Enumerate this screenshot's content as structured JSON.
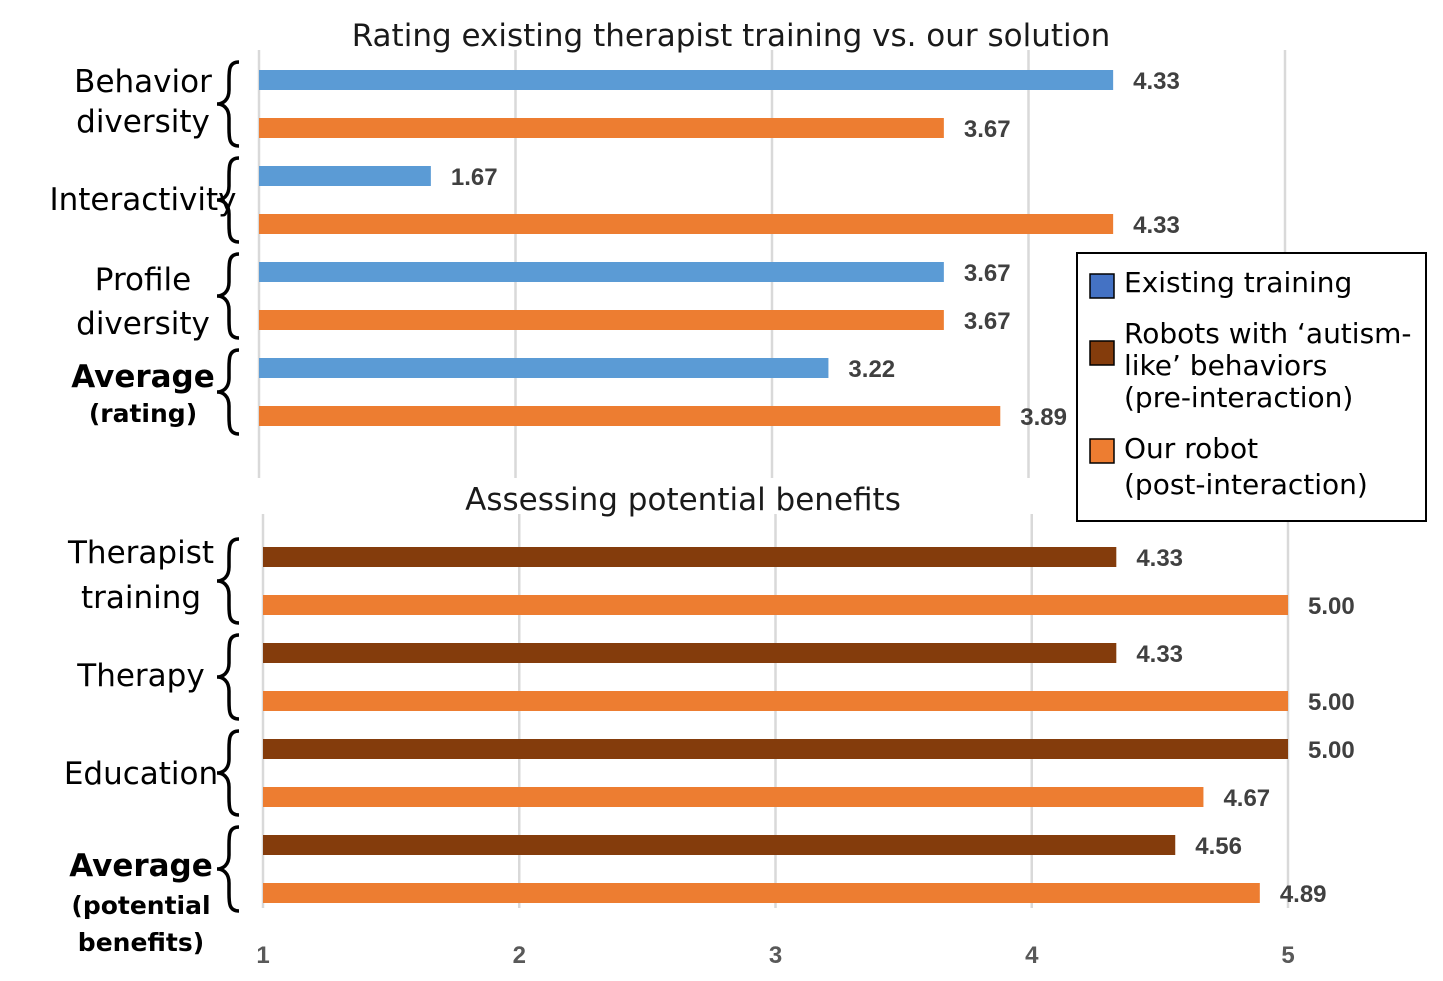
{
  "colors": {
    "existing": "#5B9BD5",
    "robots_pre": "#843C0C",
    "our_robot": "#ED7D31",
    "legend_existing": "#4472C4",
    "legend_robots": "#843C0C",
    "legend_our": "#ED7D31"
  },
  "legend": {
    "items": [
      {
        "key": "existing",
        "lines": [
          "Existing training"
        ]
      },
      {
        "key": "robots_pre",
        "lines": [
          "Robots with ‘autism-",
          "like’ behaviors",
          "(pre-interaction)"
        ]
      },
      {
        "key": "our_robot",
        "lines": [
          "Our robot",
          "(post-interaction)"
        ]
      }
    ]
  },
  "chart_data": [
    {
      "type": "bar",
      "orientation": "horizontal",
      "title": "Rating existing therapist training vs. our solution",
      "xlim": [
        1,
        5
      ],
      "categories": [
        {
          "lines": [
            "Behavior",
            "diversity"
          ],
          "bold": false
        },
        {
          "lines": [
            "Interactivity"
          ],
          "bold": false
        },
        {
          "lines": [
            "Profile",
            "diversity"
          ],
          "bold": false
        },
        {
          "lines": [
            "Average",
            "(rating)"
          ],
          "bold": true
        }
      ],
      "series": [
        {
          "name": "Existing training",
          "key": "existing",
          "values": [
            4.33,
            1.67,
            3.67,
            3.22
          ],
          "labels": [
            "4.33",
            "1.67",
            "3.67",
            "3.22"
          ]
        },
        {
          "name": "Our robot (post-interaction)",
          "key": "our_robot",
          "values": [
            3.67,
            4.33,
            3.67,
            3.89
          ],
          "labels": [
            "3.67",
            "4.33",
            "3.67",
            "3.89"
          ]
        }
      ]
    },
    {
      "type": "bar",
      "orientation": "horizontal",
      "title": "Assessing potential benefits",
      "xlim": [
        1,
        5
      ],
      "xticks": [
        "1",
        "2",
        "3",
        "4",
        "5"
      ],
      "categories": [
        {
          "lines": [
            "Therapist",
            "training"
          ],
          "bold": false
        },
        {
          "lines": [
            "Therapy"
          ],
          "bold": false
        },
        {
          "lines": [
            "Education"
          ],
          "bold": false
        },
        {
          "lines": [
            "Average",
            "(potential",
            "benefits)"
          ],
          "bold": true
        }
      ],
      "series": [
        {
          "name": "Robots with ‘autism-like’ behaviors (pre-interaction)",
          "key": "robots_pre",
          "values": [
            4.33,
            4.33,
            5.0,
            4.56
          ],
          "labels": [
            "4.33",
            "4.33",
            "5.00",
            "4.56"
          ]
        },
        {
          "name": "Our robot (post-interaction)",
          "key": "our_robot",
          "values": [
            5.0,
            5.0,
            4.67,
            4.89
          ],
          "labels": [
            "5.00",
            "5.00",
            "4.67",
            "4.89"
          ]
        }
      ]
    }
  ]
}
